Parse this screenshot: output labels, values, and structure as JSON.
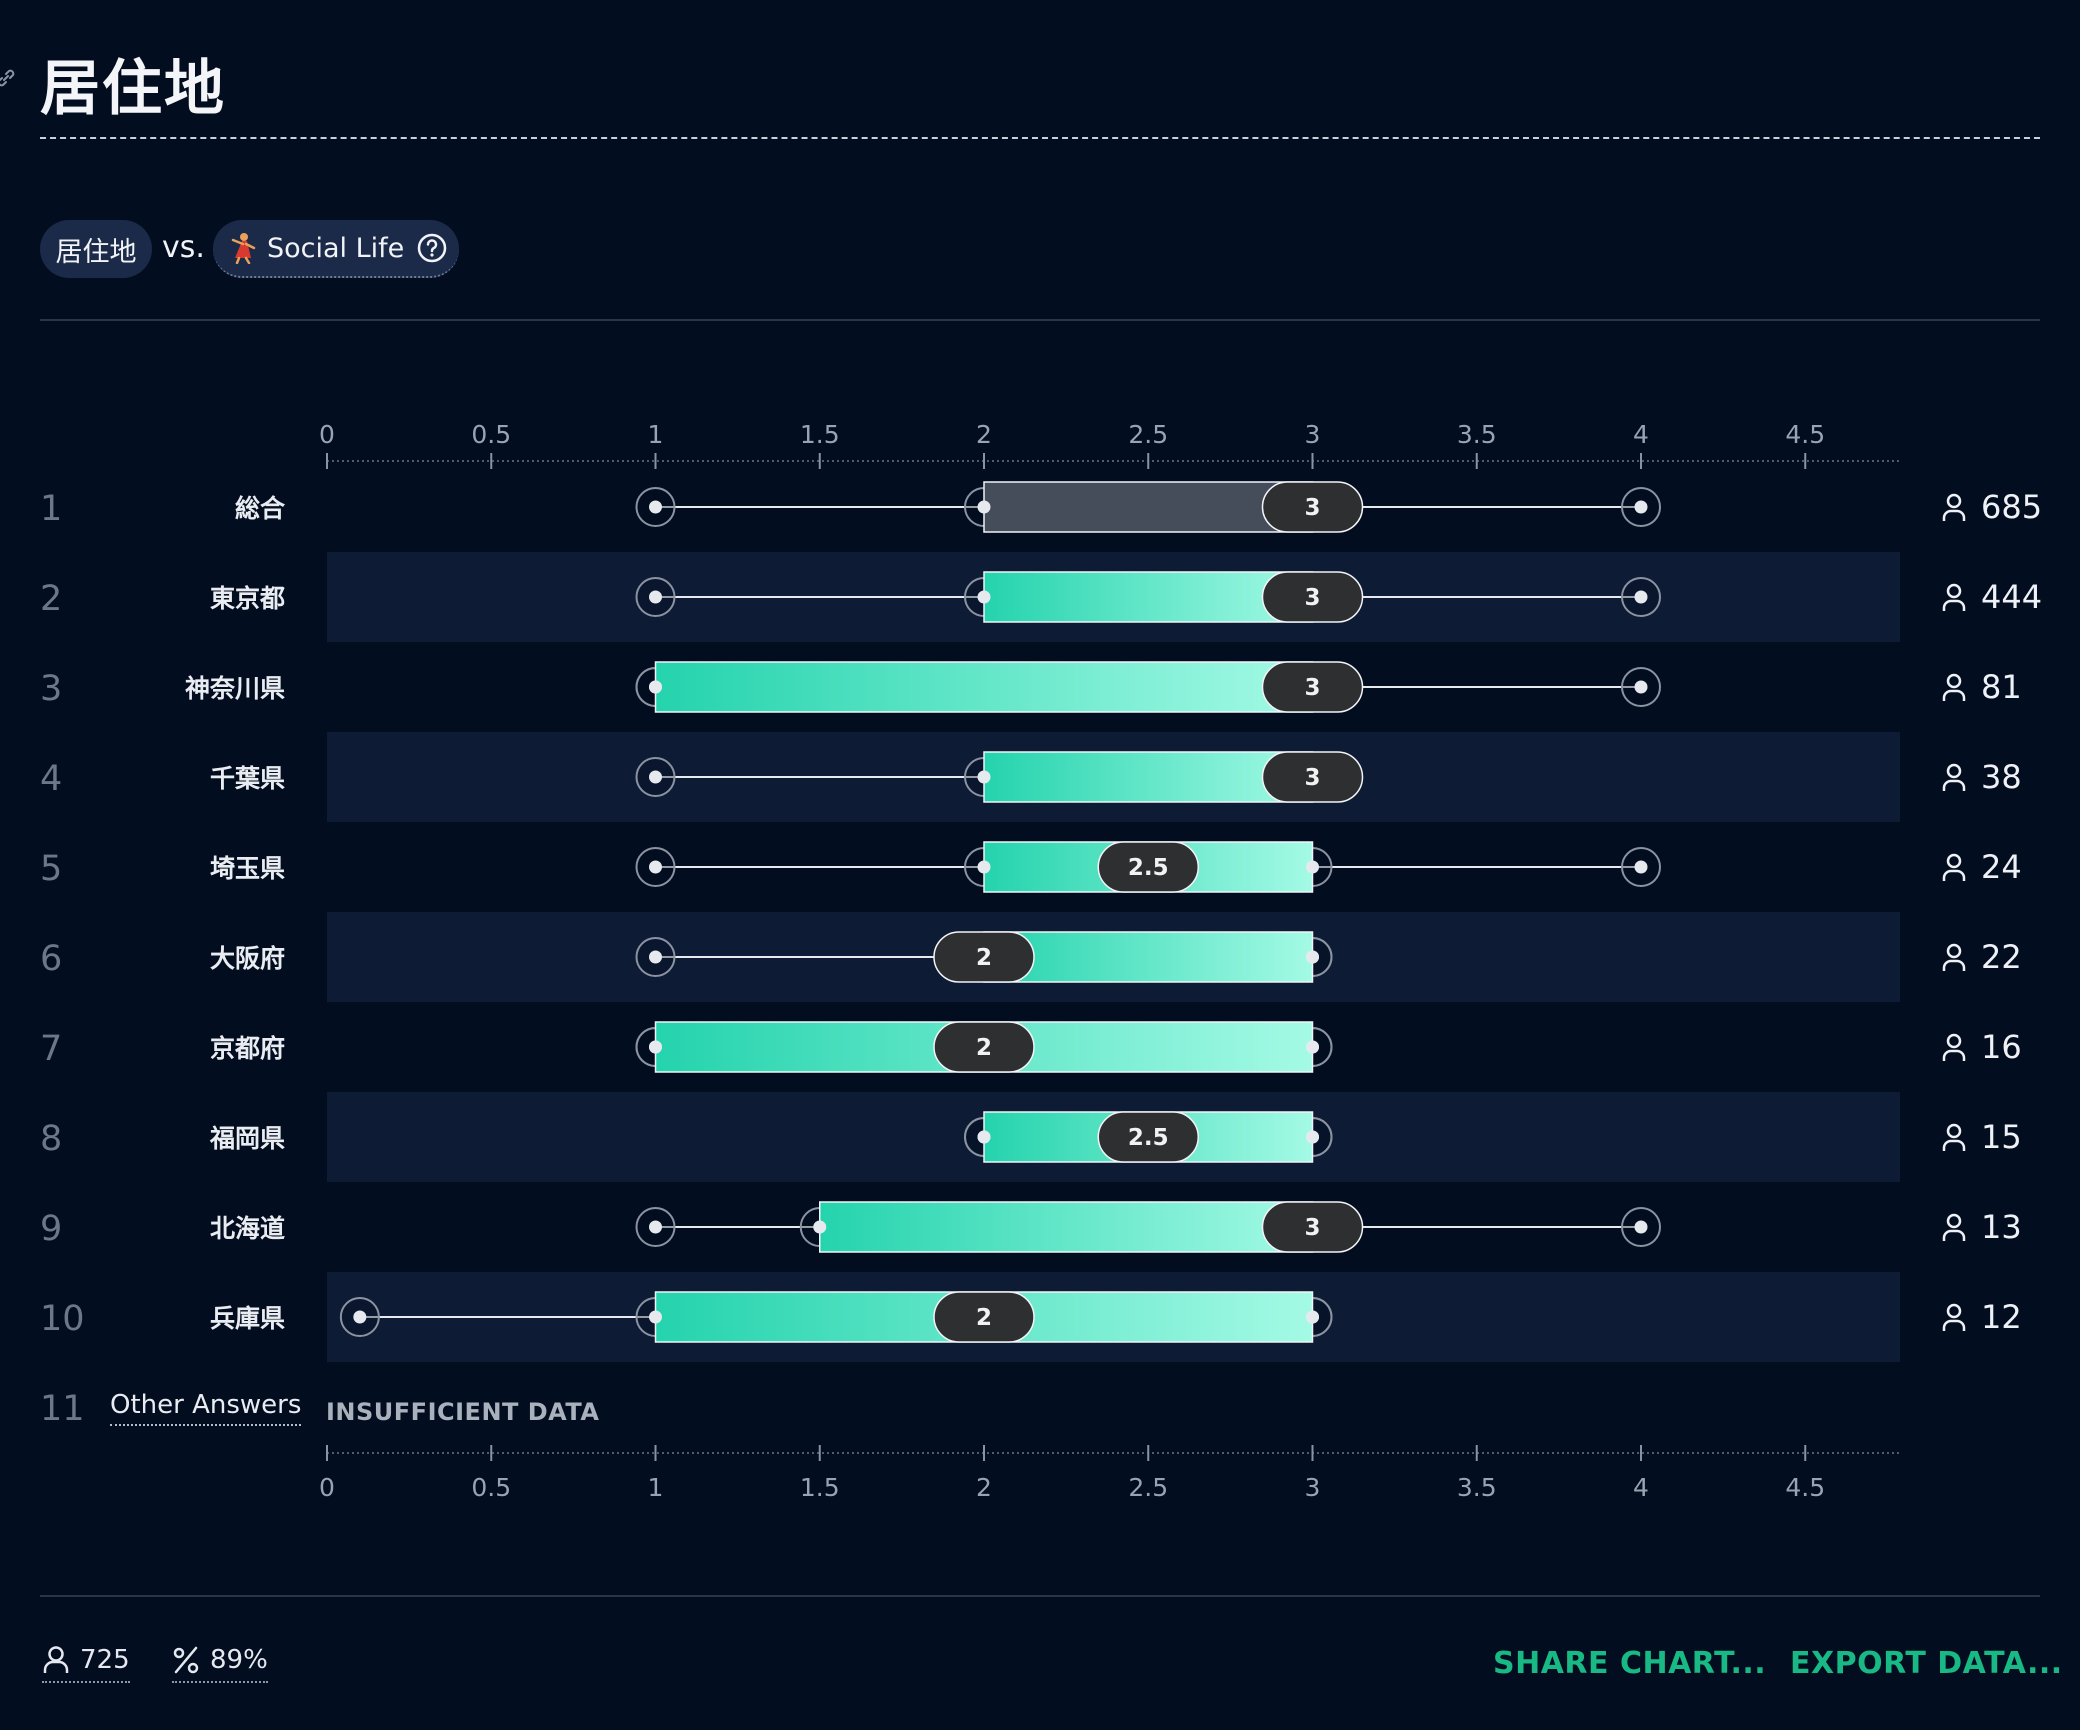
{
  "title": "居住地",
  "comparison": {
    "left_label": "居住地",
    "vs_label": "vs.",
    "right_label": "Social Life"
  },
  "colors": {
    "background": "#030d20",
    "row_band": "#0d1b35",
    "bar_gradient_start": "#24d3ad",
    "bar_gradient_end": "#a4fae5",
    "overall_bar": "#454c5a",
    "median_badge": "#2e2f31",
    "accent": "#19b985"
  },
  "chart_data": {
    "type": "box",
    "x_ticks": [
      "0",
      "0.5",
      "1",
      "1.5",
      "2",
      "2.5",
      "3",
      "3.5",
      "4",
      "4.5"
    ],
    "xlim": [
      0,
      4.8
    ],
    "rows": [
      {
        "rank": "1",
        "label": "総合",
        "min": 1,
        "q1": 2,
        "median": 3,
        "q3": 3,
        "max": 4,
        "median_label": "3",
        "count": "685",
        "overall": true
      },
      {
        "rank": "2",
        "label": "東京都",
        "min": 1,
        "q1": 2,
        "median": 3,
        "q3": 3,
        "max": 4,
        "median_label": "3",
        "count": "444"
      },
      {
        "rank": "3",
        "label": "神奈川県",
        "min": 1,
        "q1": 1,
        "median": 3,
        "q3": 3,
        "max": 4,
        "median_label": "3",
        "count": "81"
      },
      {
        "rank": "4",
        "label": "千葉県",
        "min": 1,
        "q1": 2,
        "median": 3,
        "q3": 3,
        "max": 3,
        "median_label": "3",
        "count": "38"
      },
      {
        "rank": "5",
        "label": "埼玉県",
        "min": 1,
        "q1": 2,
        "median": 2.5,
        "q3": 3,
        "max": 4,
        "median_label": "2.5",
        "count": "24"
      },
      {
        "rank": "6",
        "label": "大阪府",
        "min": 1,
        "q1": 2,
        "median": 2,
        "q3": 3,
        "max": 3,
        "median_label": "2",
        "count": "22"
      },
      {
        "rank": "7",
        "label": "京都府",
        "min": 1,
        "q1": 1,
        "median": 2,
        "q3": 3,
        "max": 3,
        "median_label": "2",
        "count": "16"
      },
      {
        "rank": "8",
        "label": "福岡県",
        "min": 2,
        "q1": 2,
        "median": 2.5,
        "q3": 3,
        "max": 3,
        "median_label": "2.5",
        "count": "15"
      },
      {
        "rank": "9",
        "label": "北海道",
        "min": 1,
        "q1": 1.5,
        "median": 3,
        "q3": 3,
        "max": 4,
        "median_label": "3",
        "count": "13"
      },
      {
        "rank": "10",
        "label": "兵庫県",
        "min": 0.1,
        "q1": 1,
        "median": 2,
        "q3": 3,
        "max": 3,
        "median_label": "2",
        "count": "12"
      }
    ],
    "other": {
      "rank": "11",
      "label": "Other Answers",
      "note": "INSUFFICIENT DATA"
    }
  },
  "footer": {
    "respondents": "725",
    "percent": "89%",
    "share_label": "SHARE CHART...",
    "export_label": "EXPORT DATA..."
  }
}
